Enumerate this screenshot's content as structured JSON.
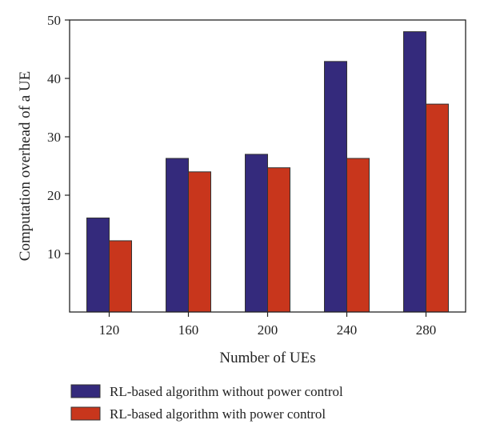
{
  "chart_data": {
    "type": "bar",
    "xlabel": "Number of UEs",
    "ylabel": "Computation overhead of a UE",
    "categories": [
      "120",
      "160",
      "200",
      "240",
      "280"
    ],
    "ylim": [
      0,
      50
    ],
    "yticks": [
      10,
      20,
      30,
      40,
      50
    ],
    "grid": false,
    "legend_position": "bottom",
    "series": [
      {
        "name": "RL-based algorithm without power control",
        "color": "#342a7c",
        "values": [
          16.1,
          26.3,
          27.0,
          42.9,
          48.0
        ]
      },
      {
        "name": "RL-based algorithm with power control",
        "color": "#c8361c",
        "values": [
          12.2,
          24.0,
          24.7,
          26.3,
          35.6
        ]
      }
    ]
  }
}
